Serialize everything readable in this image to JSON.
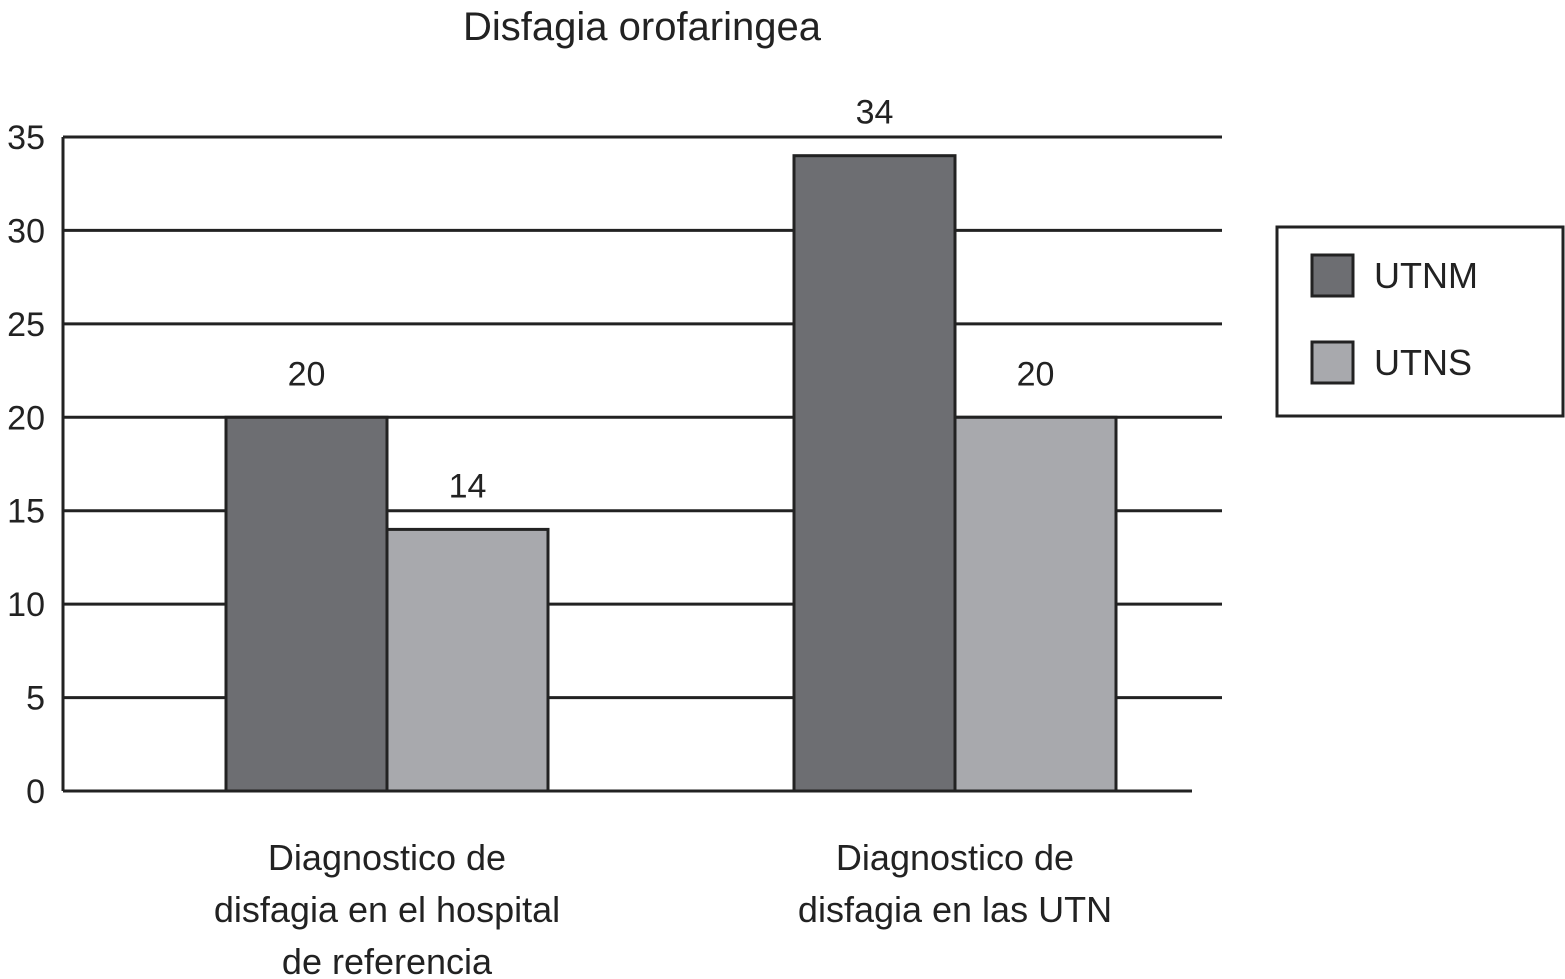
{
  "chart_data": {
    "type": "bar",
    "title": "Disfagia orofaringea",
    "xlabel": "",
    "ylabel": "",
    "ylim": [
      0,
      35
    ],
    "yticks": [
      0,
      5,
      10,
      15,
      20,
      25,
      30,
      35
    ],
    "grid": true,
    "legend_position": "right",
    "categories": [
      [
        "Diagnostico de",
        "disfagia en el hospital",
        "de referencia"
      ],
      [
        "Diagnostico de",
        "disfagia en las UTN"
      ]
    ],
    "series": [
      {
        "name": "UTNM",
        "values": [
          20,
          34
        ],
        "color": "#6d6e72"
      },
      {
        "name": "UTNS",
        "values": [
          14,
          20
        ],
        "color": "#a8a9ad"
      }
    ]
  }
}
